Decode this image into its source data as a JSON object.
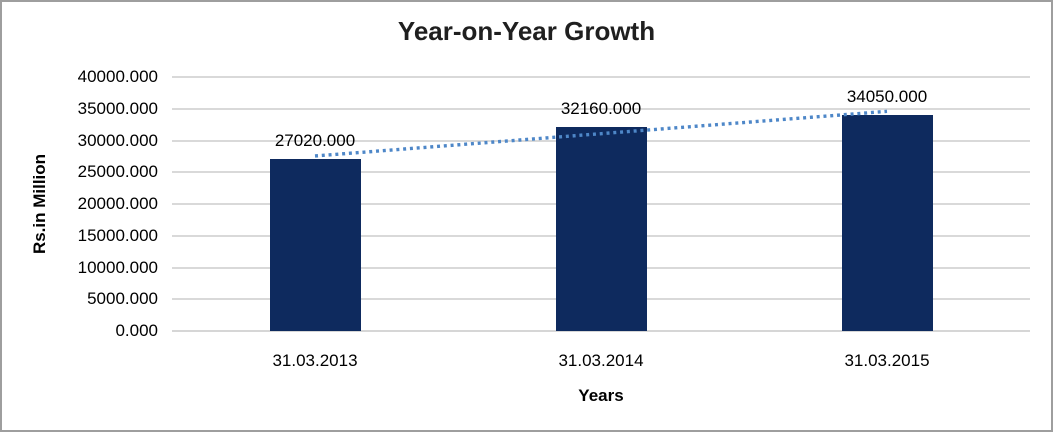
{
  "chart_data": {
    "type": "bar",
    "title": "Year-on-Year Growth",
    "xlabel": "Years",
    "ylabel": "Rs.in Million",
    "categories": [
      "31.03.2013",
      "31.03.2014",
      "31.03.2015"
    ],
    "values": [
      27020,
      32160,
      34050
    ],
    "value_labels": [
      "27020.000",
      "32160.000",
      "34050.000"
    ],
    "ylim": [
      0,
      40000
    ],
    "y_tick_step": 5000,
    "y_tick_labels": [
      "0.000",
      "5000.000",
      "10000.000",
      "15000.000",
      "20000.000",
      "25000.000",
      "30000.000",
      "35000.000",
      "40000.000"
    ],
    "grid": "on",
    "legend": "none",
    "trendline": {
      "type": "linear",
      "style": "dotted"
    },
    "colors": {
      "bar": "#0E2A5E",
      "trendline": "#4E87C8",
      "gridline": "#D9D9D9",
      "axis_line": "#D6D6D6",
      "text": "#000000",
      "title": "#1F1F1F",
      "frame": "#9E9E9E",
      "background": "#FFFFFF"
    }
  }
}
